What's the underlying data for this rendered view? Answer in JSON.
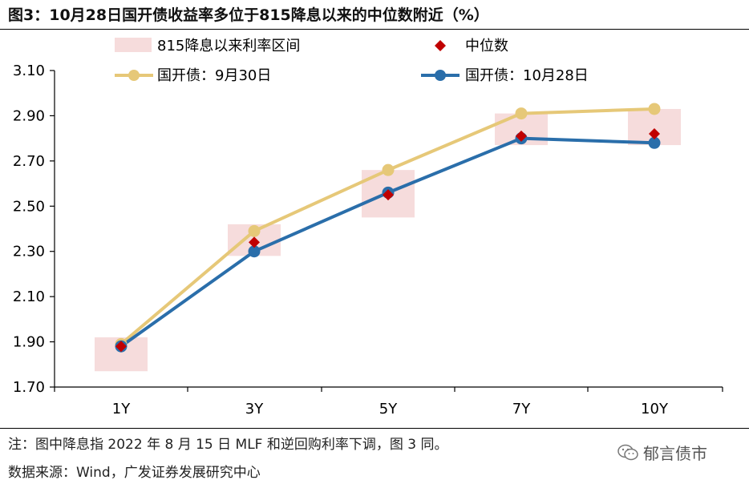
{
  "title": "图3：10月28日国开债收益率多位于815降息以来的中位数附近（%）",
  "chart_data": {
    "type": "line",
    "title": "图3：10月28日国开债收益率多位于815降息以来的中位数附近（%）",
    "categories": [
      "1Y",
      "3Y",
      "5Y",
      "7Y",
      "10Y"
    ],
    "ylim": [
      1.7,
      3.1
    ],
    "yticks": [
      "3.10",
      "2.90",
      "2.70",
      "2.50",
      "2.30",
      "2.10",
      "1.90",
      "1.70"
    ],
    "yticks_values": [
      3.1,
      2.9,
      2.7,
      2.5,
      2.3,
      2.1,
      1.9,
      1.7
    ],
    "series": [
      {
        "name": "国开债：9月30日",
        "color": "#E6C878",
        "values": [
          1.89,
          2.39,
          2.66,
          2.91,
          2.93
        ]
      },
      {
        "name": "国开债：10月28日",
        "color": "#2A6EAA",
        "values": [
          1.88,
          2.3,
          2.56,
          2.8,
          2.78
        ]
      }
    ],
    "median": {
      "name": "中位数",
      "color": "#C00000",
      "values": [
        1.88,
        2.34,
        2.55,
        2.81,
        2.82
      ]
    },
    "range": {
      "name": "815降息以来利率区间",
      "color": "#F6DCDC",
      "low": [
        1.77,
        2.28,
        2.45,
        2.77,
        2.77
      ],
      "high": [
        1.92,
        2.42,
        2.66,
        2.91,
        2.93
      ]
    }
  },
  "legend": {
    "range_label": "815降息以来利率区间",
    "median_label": "中位数",
    "sep30_label": "国开债：9月30日",
    "oct28_label": "国开债：10月28日"
  },
  "footer": {
    "note": "注：图中降息指 2022 年 8 月 15 日 MLF 和逆回购利率下调，图 3 同。",
    "source": "数据来源：Wind，广发证券发展研究中心"
  },
  "watermark": {
    "text": "郁言债市",
    "icon": "wechat-icon"
  }
}
